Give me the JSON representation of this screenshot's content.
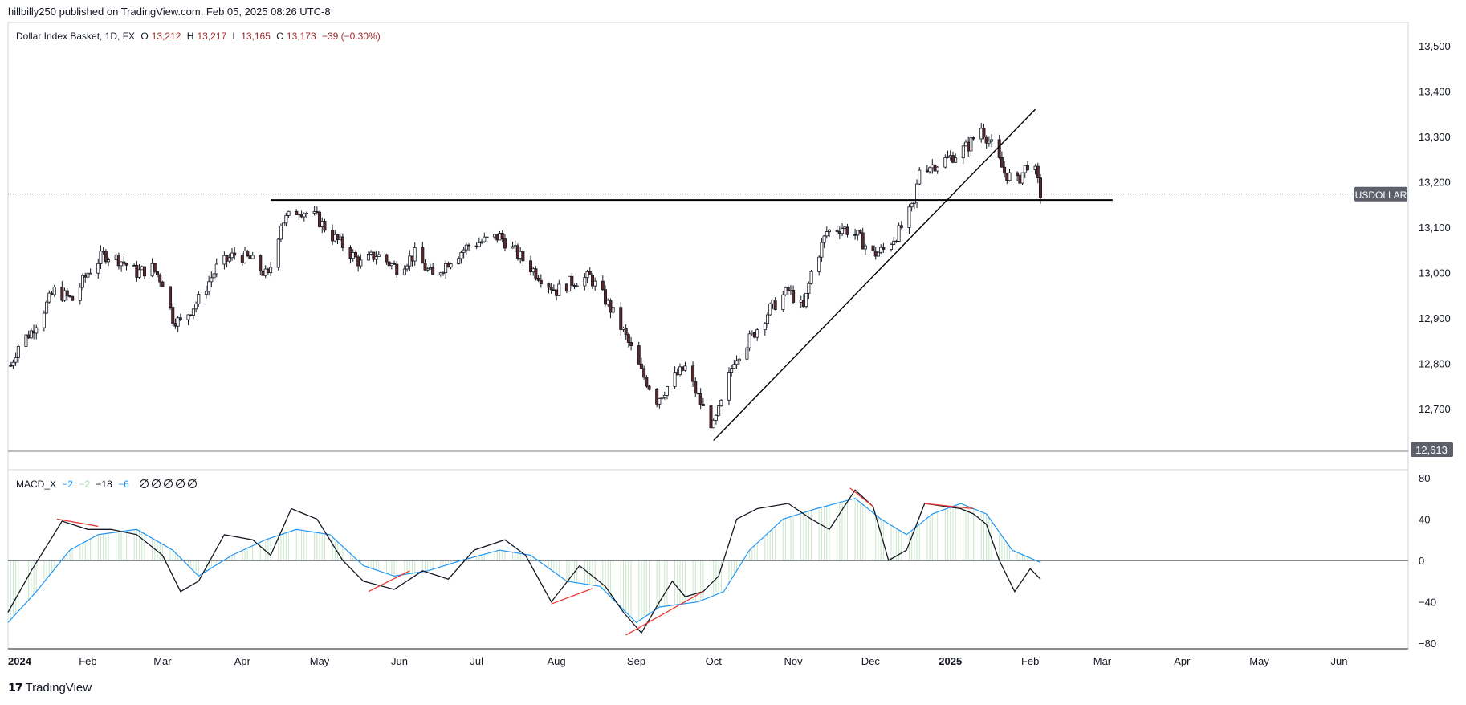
{
  "header": {
    "publisher_line": "hillbilly250 published on TradingView.com, Feb 05, 2025 08:26 UTC-8"
  },
  "main_legend": {
    "title": "Dollar Index Basket, 1D, FX",
    "open_label": "O",
    "open": "13,212",
    "high_label": "H",
    "high": "13,217",
    "low_label": "L",
    "low": "13,165",
    "close_label": "C",
    "close": "13,173",
    "change": "−39 (−0.30%)"
  },
  "macd_legend": {
    "name": "MACD_X",
    "v1": "−2",
    "v2": "−2",
    "v3": "−18",
    "v4": "−6",
    "null_count": 5
  },
  "symbol_tag": "USDOLLAR",
  "price_marker": "12,613",
  "footer": {
    "brand": "TradingView",
    "logo": "tradingview-logo-icon"
  },
  "colors": {
    "up_candle": "#ffffff",
    "down_candle": "#5d2a2a",
    "wick": "#131722",
    "macd_line": "#131722",
    "signal_line": "#2196f3",
    "histogram": "#c8e6c9",
    "drawing_red": "#e53935",
    "tag_bg": "#5d606b"
  },
  "chart_data": [
    {
      "type": "candlestick",
      "title": "Dollar Index Basket, 1D, FX",
      "xlabel": "",
      "ylabel": "",
      "x_ticks": [
        "2024",
        "Feb",
        "Mar",
        "Apr",
        "May",
        "Jun",
        "Jul",
        "Aug",
        "Sep",
        "Oct",
        "Nov",
        "Dec",
        "2025",
        "Feb",
        "Mar",
        "Apr",
        "May",
        "Jun"
      ],
      "y_ticks": [
        "13,500",
        "13,400",
        "13,300",
        "13,200",
        "13,100",
        "13,000",
        "12,900",
        "12,800",
        "12,700"
      ],
      "ylim": [
        12590,
        13530
      ],
      "grid": false,
      "close_path": [
        [
          "2024-01-01",
          12780
        ],
        [
          "2024-01-05",
          12840
        ],
        [
          "2024-01-10",
          12870
        ],
        [
          "2024-01-15",
          12920
        ],
        [
          "2024-01-19",
          12960
        ],
        [
          "2024-01-26",
          12940
        ],
        [
          "2024-02-01",
          13000
        ],
        [
          "2024-02-07",
          13040
        ],
        [
          "2024-02-13",
          13030
        ],
        [
          "2024-02-20",
          13000
        ],
        [
          "2024-02-26",
          13010
        ],
        [
          "2024-03-01",
          12980
        ],
        [
          "2024-03-05",
          12900
        ],
        [
          "2024-03-08",
          12890
        ],
        [
          "2024-03-15",
          12940
        ],
        [
          "2024-03-22",
          13010
        ],
        [
          "2024-03-29",
          13040
        ],
        [
          "2024-04-04",
          13030
        ],
        [
          "2024-04-11",
          12990
        ],
        [
          "2024-04-16",
          13110
        ],
        [
          "2024-04-23",
          13140
        ],
        [
          "2024-04-30",
          13120
        ],
        [
          "2024-05-06",
          13080
        ],
        [
          "2024-05-10",
          13060
        ],
        [
          "2024-05-17",
          13020
        ],
        [
          "2024-05-23",
          13040
        ],
        [
          "2024-05-31",
          13010
        ],
        [
          "2024-06-07",
          13040
        ],
        [
          "2024-06-14",
          12990
        ],
        [
          "2024-06-21",
          13030
        ],
        [
          "2024-06-28",
          13060
        ],
        [
          "2024-07-04",
          13070
        ],
        [
          "2024-07-10",
          13080
        ],
        [
          "2024-07-17",
          13040
        ],
        [
          "2024-07-24",
          13000
        ],
        [
          "2024-08-01",
          12960
        ],
        [
          "2024-08-07",
          12980
        ],
        [
          "2024-08-14",
          12990
        ],
        [
          "2024-08-20",
          12940
        ],
        [
          "2024-08-27",
          12870
        ],
        [
          "2024-09-03",
          12780
        ],
        [
          "2024-09-09",
          12720
        ],
        [
          "2024-09-16",
          12770
        ],
        [
          "2024-09-20",
          12790
        ],
        [
          "2024-09-27",
          12700
        ],
        [
          "2024-10-01",
          12660
        ],
        [
          "2024-10-04",
          12710
        ],
        [
          "2024-10-09",
          12810
        ],
        [
          "2024-10-16",
          12860
        ],
        [
          "2024-10-23",
          12920
        ],
        [
          "2024-10-30",
          12960
        ],
        [
          "2024-11-05",
          12920
        ],
        [
          "2024-11-08",
          13000
        ],
        [
          "2024-11-14",
          13090
        ],
        [
          "2024-11-20",
          13100
        ],
        [
          "2024-11-26",
          13080
        ],
        [
          "2024-12-02",
          13040
        ],
        [
          "2024-12-06",
          13050
        ],
        [
          "2024-12-12",
          13090
        ],
        [
          "2024-12-18",
          13150
        ],
        [
          "2024-12-20",
          13230
        ],
        [
          "2024-12-27",
          13240
        ],
        [
          "2025-01-03",
          13260
        ],
        [
          "2025-01-08",
          13280
        ],
        [
          "2025-01-13",
          13320
        ],
        [
          "2025-01-17",
          13280
        ],
        [
          "2025-01-22",
          13220
        ],
        [
          "2025-01-27",
          13200
        ],
        [
          "2025-01-31",
          13240
        ],
        [
          "2025-02-03",
          13220
        ],
        [
          "2025-02-05",
          13173
        ]
      ],
      "horizontal_line": 13160,
      "trendline": [
        [
          "2024-10-01",
          12630
        ],
        [
          "2025-02-03",
          13360
        ]
      ]
    },
    {
      "type": "line",
      "title": "MACD_X",
      "xlabel": "",
      "ylabel": "",
      "y_ticks": [
        "80",
        "40",
        "0",
        "−40",
        "−80"
      ],
      "ylim": [
        -82,
        82
      ],
      "series": [
        {
          "values": [
            [
              "2024-01-01",
              -50
            ],
            [
              "2024-01-10",
              -10
            ],
            [
              "2024-01-22",
              38
            ],
            [
              "2024-02-01",
              30
            ],
            [
              "2024-02-10",
              30
            ],
            [
              "2024-02-20",
              25
            ],
            [
              "2024-03-01",
              5
            ],
            [
              "2024-03-08",
              -30
            ],
            [
              "2024-03-15",
              -20
            ],
            [
              "2024-03-25",
              25
            ],
            [
              "2024-04-05",
              20
            ],
            [
              "2024-04-12",
              5
            ],
            [
              "2024-04-20",
              50
            ],
            [
              "2024-04-30",
              40
            ],
            [
              "2024-05-10",
              0
            ],
            [
              "2024-05-18",
              -20
            ],
            [
              "2024-05-30",
              -28
            ],
            [
              "2024-06-10",
              -10
            ],
            [
              "2024-06-20",
              -18
            ],
            [
              "2024-06-30",
              10
            ],
            [
              "2024-07-12",
              20
            ],
            [
              "2024-07-20",
              5
            ],
            [
              "2024-07-30",
              -40
            ],
            [
              "2024-08-10",
              -5
            ],
            [
              "2024-08-20",
              -25
            ],
            [
              "2024-08-27",
              -50
            ],
            [
              "2024-09-03",
              -70
            ],
            [
              "2024-09-10",
              -40
            ],
            [
              "2024-09-15",
              -20
            ],
            [
              "2024-09-20",
              -35
            ],
            [
              "2024-09-27",
              -30
            ],
            [
              "2024-10-03",
              -15
            ],
            [
              "2024-10-10",
              40
            ],
            [
              "2024-10-18",
              50
            ],
            [
              "2024-10-30",
              55
            ],
            [
              "2024-11-08",
              40
            ],
            [
              "2024-11-15",
              30
            ],
            [
              "2024-11-25",
              68
            ],
            [
              "2024-12-02",
              52
            ],
            [
              "2024-12-08",
              0
            ],
            [
              "2024-12-15",
              10
            ],
            [
              "2024-12-22",
              55
            ],
            [
              "2025-01-05",
              50
            ],
            [
              "2025-01-10",
              45
            ],
            [
              "2025-01-15",
              35
            ],
            [
              "2025-01-20",
              0
            ],
            [
              "2025-01-26",
              -30
            ],
            [
              "2025-02-01",
              -8
            ],
            [
              "2025-02-05",
              -18
            ]
          ]
        },
        {
          "values": [
            [
              "2024-01-01",
              -60
            ],
            [
              "2024-01-12",
              -30
            ],
            [
              "2024-01-25",
              10
            ],
            [
              "2024-02-05",
              25
            ],
            [
              "2024-02-20",
              30
            ],
            [
              "2024-03-05",
              10
            ],
            [
              "2024-03-15",
              -15
            ],
            [
              "2024-03-28",
              5
            ],
            [
              "2024-04-10",
              20
            ],
            [
              "2024-04-22",
              30
            ],
            [
              "2024-05-05",
              25
            ],
            [
              "2024-05-18",
              -5
            ],
            [
              "2024-05-30",
              -15
            ],
            [
              "2024-06-12",
              -10
            ],
            [
              "2024-06-25",
              0
            ],
            [
              "2024-07-10",
              10
            ],
            [
              "2024-07-22",
              5
            ],
            [
              "2024-08-05",
              -20
            ],
            [
              "2024-08-18",
              -25
            ],
            [
              "2024-09-01",
              -60
            ],
            [
              "2024-09-10",
              -45
            ],
            [
              "2024-09-25",
              -40
            ],
            [
              "2024-10-05",
              -30
            ],
            [
              "2024-10-15",
              10
            ],
            [
              "2024-10-28",
              40
            ],
            [
              "2024-11-10",
              50
            ],
            [
              "2024-11-25",
              60
            ],
            [
              "2024-12-05",
              40
            ],
            [
              "2024-12-15",
              25
            ],
            [
              "2024-12-25",
              45
            ],
            [
              "2025-01-05",
              55
            ],
            [
              "2025-01-15",
              45
            ],
            [
              "2025-01-25",
              10
            ],
            [
              "2025-02-05",
              -2
            ]
          ]
        }
      ],
      "red_lines": [
        [
          [
            "2024-01-20",
            40
          ],
          [
            "2024-02-05",
            33
          ]
        ],
        [
          [
            "2024-05-20",
            -30
          ],
          [
            "2024-06-05",
            -10
          ]
        ],
        [
          [
            "2024-07-30",
            -42
          ],
          [
            "2024-08-15",
            -27
          ]
        ],
        [
          [
            "2024-08-28",
            -72
          ],
          [
            "2024-09-27",
            -30
          ]
        ],
        [
          [
            "2024-11-23",
            70
          ],
          [
            "2024-12-02",
            52
          ]
        ],
        [
          [
            "2024-12-22",
            55
          ],
          [
            "2025-01-10",
            50
          ]
        ]
      ]
    }
  ]
}
